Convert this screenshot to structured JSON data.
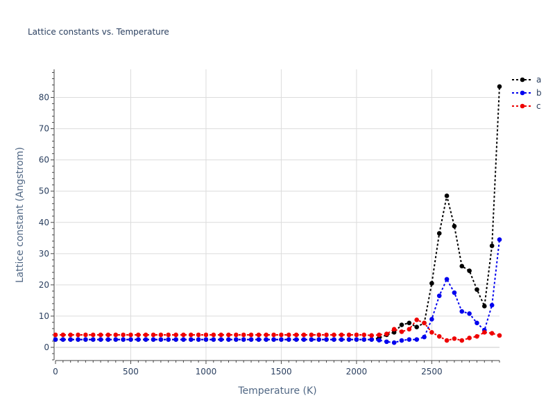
{
  "chart_data": {
    "type": "line",
    "title": "Lattice constants vs. Temperature",
    "xlabel": "Temperature (K)",
    "ylabel": "Lattice constant (Angstrom)",
    "xlim": [
      0,
      2950
    ],
    "ylim": [
      -4,
      89
    ],
    "xticks": [
      0,
      500,
      1000,
      1500,
      2000,
      2500
    ],
    "yticks": [
      0,
      10,
      20,
      30,
      40,
      50,
      60,
      70,
      80
    ],
    "grid": true,
    "legend": "top-right",
    "x": [
      0,
      50,
      100,
      150,
      200,
      250,
      300,
      350,
      400,
      450,
      500,
      550,
      600,
      650,
      700,
      750,
      800,
      850,
      900,
      950,
      1000,
      1050,
      1100,
      1150,
      1200,
      1250,
      1300,
      1350,
      1400,
      1450,
      1500,
      1550,
      1600,
      1650,
      1700,
      1750,
      1800,
      1850,
      1900,
      1950,
      2000,
      2050,
      2100,
      2150,
      2200,
      2250,
      2300,
      2350,
      2400,
      2450,
      2500,
      2550,
      2600,
      2650,
      2700,
      2750,
      2800,
      2850,
      2900,
      2950
    ],
    "series": [
      {
        "name": "a",
        "color": "#000000",
        "values": [
          2.5,
          2.5,
          2.5,
          2.5,
          2.5,
          2.5,
          2.5,
          2.5,
          2.5,
          2.5,
          2.5,
          2.5,
          2.5,
          2.5,
          2.5,
          2.5,
          2.5,
          2.5,
          2.5,
          2.5,
          2.5,
          2.5,
          2.5,
          2.5,
          2.5,
          2.5,
          2.5,
          2.5,
          2.5,
          2.5,
          2.5,
          2.5,
          2.5,
          2.5,
          2.5,
          2.5,
          2.5,
          2.5,
          2.5,
          2.5,
          2.5,
          2.5,
          2.5,
          3.0,
          4.0,
          4.8,
          7.2,
          7.8,
          6.5,
          7.8,
          20.5,
          36.5,
          48.5,
          38.8,
          26.0,
          24.5,
          18.5,
          13.2,
          32.5,
          83.5
        ]
      },
      {
        "name": "b",
        "color": "#0000ee",
        "values": [
          2.5,
          2.5,
          2.5,
          2.5,
          2.5,
          2.5,
          2.5,
          2.5,
          2.5,
          2.5,
          2.5,
          2.5,
          2.5,
          2.5,
          2.5,
          2.5,
          2.5,
          2.5,
          2.5,
          2.5,
          2.5,
          2.5,
          2.5,
          2.5,
          2.5,
          2.5,
          2.5,
          2.5,
          2.5,
          2.5,
          2.5,
          2.5,
          2.5,
          2.5,
          2.5,
          2.5,
          2.5,
          2.5,
          2.5,
          2.5,
          2.5,
          2.5,
          2.5,
          2.3,
          1.8,
          1.5,
          2.2,
          2.5,
          2.5,
          3.3,
          9.0,
          16.5,
          21.8,
          17.5,
          11.5,
          10.8,
          7.8,
          5.5,
          13.5,
          34.5
        ]
      },
      {
        "name": "c",
        "color": "#ee0000",
        "values": [
          4.0,
          4.0,
          4.0,
          4.0,
          4.0,
          4.0,
          4.0,
          4.0,
          4.0,
          4.0,
          4.0,
          4.0,
          4.0,
          4.0,
          4.0,
          4.0,
          4.0,
          4.0,
          4.0,
          4.0,
          4.0,
          4.0,
          4.0,
          4.0,
          4.0,
          4.0,
          4.0,
          4.0,
          4.0,
          4.0,
          4.0,
          4.0,
          4.0,
          4.0,
          4.0,
          4.0,
          4.0,
          4.0,
          4.0,
          4.0,
          4.0,
          4.0,
          3.8,
          4.0,
          4.3,
          5.8,
          5.0,
          5.8,
          8.8,
          7.8,
          4.8,
          3.5,
          2.2,
          2.8,
          2.2,
          3.0,
          3.5,
          4.8,
          4.5,
          3.8
        ]
      }
    ]
  }
}
